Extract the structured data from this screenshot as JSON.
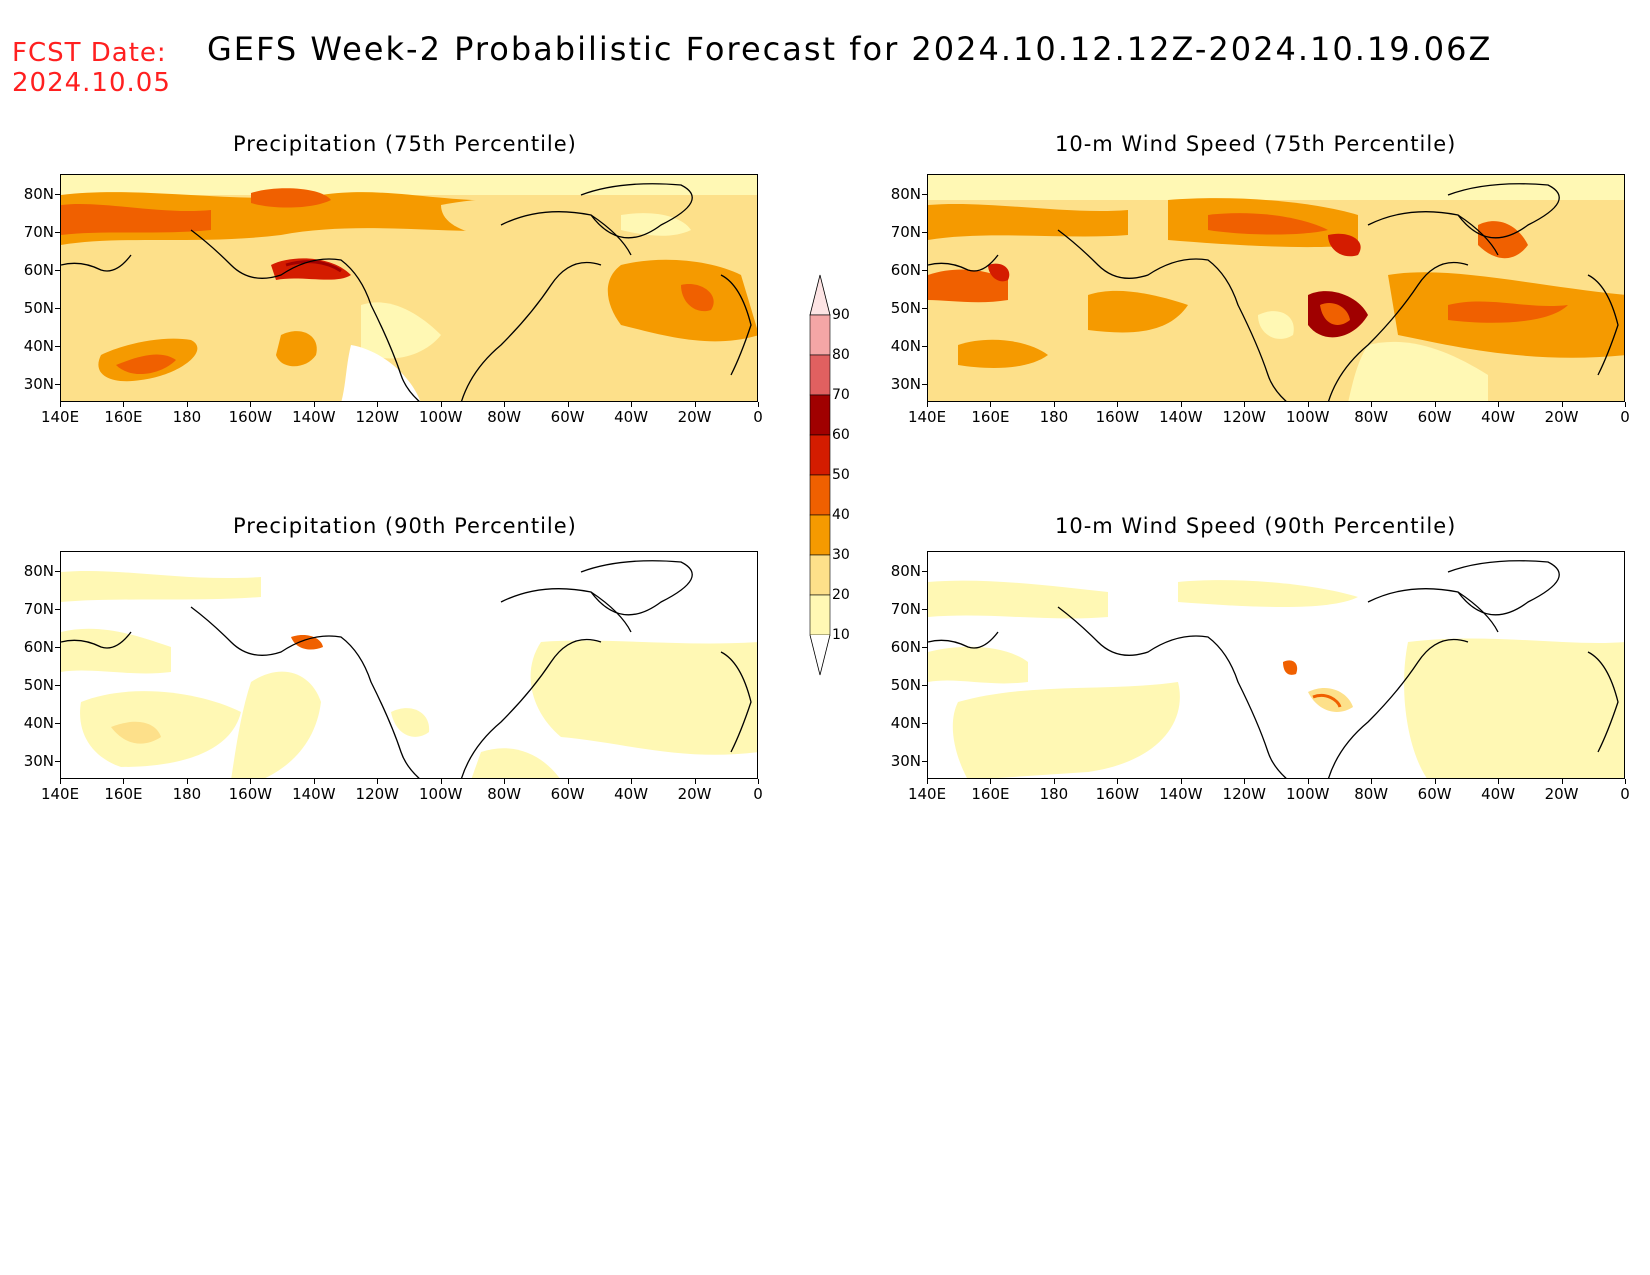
{
  "fcst_label": "FCST Date:",
  "fcst_date": "2024.10.05",
  "title": "GEFS Week-2 Probabilistic Forecast for 2024.10.12.12Z-2024.10.19.06Z",
  "panels": [
    {
      "id": "p75",
      "title": "Precipitation (75th Percentile)"
    },
    {
      "id": "w75",
      "title": "10-m Wind Speed (75th Percentile)"
    },
    {
      "id": "p90",
      "title": "Precipitation (90th Percentile)"
    },
    {
      "id": "w90",
      "title": "10-m Wind Speed (90th Percentile)"
    }
  ],
  "lat_labels": [
    "80N",
    "70N",
    "60N",
    "50N",
    "40N",
    "30N"
  ],
  "lon_labels": [
    "140E",
    "160E",
    "180",
    "160W",
    "140W",
    "120W",
    "100W",
    "80W",
    "60W",
    "40W",
    "20W",
    "0"
  ],
  "colorbar": {
    "labels": [
      "90",
      "80",
      "70",
      "60",
      "50",
      "40",
      "30",
      "20",
      "10"
    ],
    "colors": [
      "#f4a6a6",
      "#e06060",
      "#a00000",
      "#d41c00",
      "#f06000",
      "#f59a00",
      "#fde08a",
      "#fff8b4"
    ]
  }
}
